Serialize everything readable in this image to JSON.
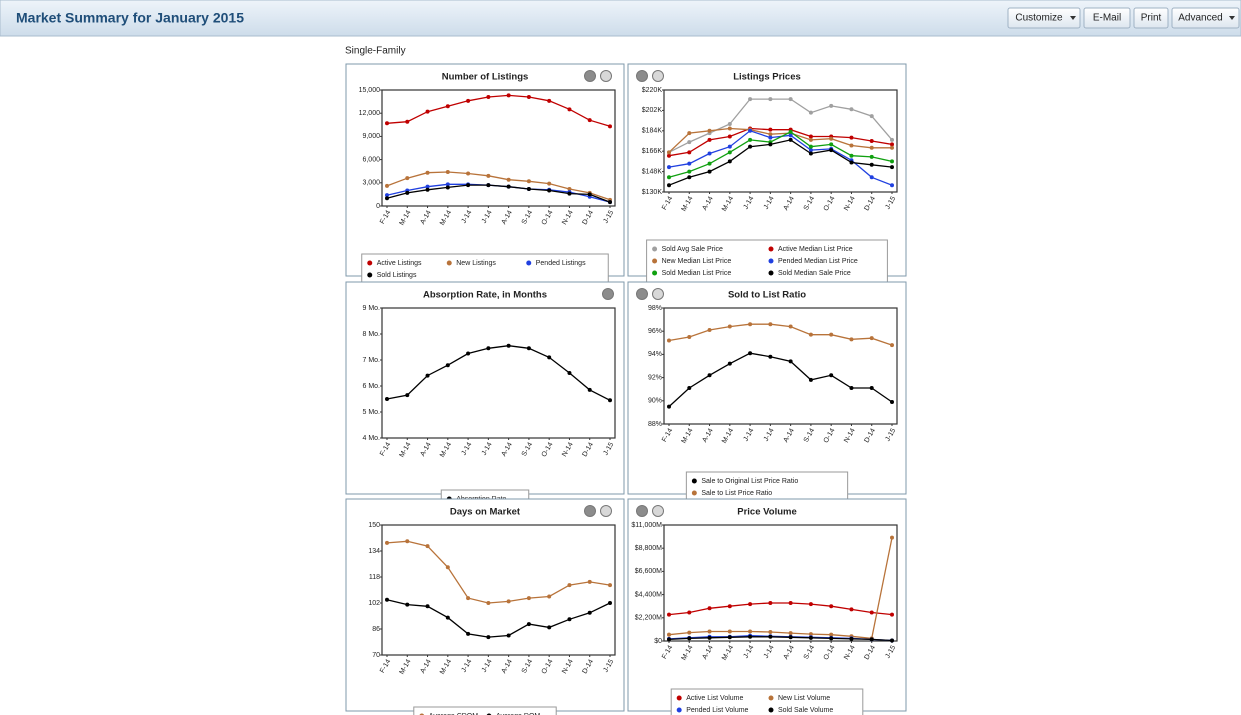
{
  "header": {
    "title": "Market Summary for January 2015",
    "buttons": [
      "Customize",
      "E-Mail",
      "Print",
      "Advanced"
    ]
  },
  "subtitle": "Single-Family",
  "chart_data": [
    {
      "type": "line",
      "title": "Number of Listings",
      "categories": [
        "F-14",
        "M-14",
        "A-14",
        "M-14",
        "J-14",
        "J-14",
        "A-14",
        "S-14",
        "O-14",
        "N-14",
        "D-14",
        "J-15"
      ],
      "ylim": [
        0,
        15000
      ],
      "yticks": [
        0,
        {
          "value": 3000,
          "label": "3,000"
        },
        {
          "value": 6000,
          "label": "6,000"
        },
        {
          "value": 9000,
          "label": "9,000"
        },
        {
          "value": 12000,
          "label": "12,000"
        },
        {
          "value": 15000,
          "label": "15,000"
        }
      ],
      "series": [
        {
          "name": "Active Listings",
          "color": "#c00000",
          "values": [
            10700,
            10900,
            12200,
            12900,
            13600,
            14100,
            14300,
            14100,
            13600,
            12500,
            11100,
            10300
          ]
        },
        {
          "name": "New Listings",
          "color": "#b8733a",
          "values": [
            2600,
            3600,
            4300,
            4400,
            4200,
            3900,
            3400,
            3200,
            2900,
            2200,
            1700,
            800
          ]
        },
        {
          "name": "Pended Listings",
          "color": "#2040e0",
          "values": [
            1400,
            2000,
            2500,
            2800,
            2800,
            2700,
            2500,
            2200,
            2100,
            1800,
            1200,
            500
          ]
        },
        {
          "name": "Sold Listings",
          "color": "#000000",
          "values": [
            1000,
            1700,
            2100,
            2400,
            2700,
            2700,
            2500,
            2200,
            2000,
            1600,
            1500,
            500
          ]
        }
      ]
    },
    {
      "type": "line",
      "title": "Listings Prices",
      "categories": [
        "F-14",
        "M-14",
        "A-14",
        "M-14",
        "J-14",
        "J-14",
        "A-14",
        "S-14",
        "O-14",
        "N-14",
        "D-14",
        "J-15"
      ],
      "ylim": [
        130000,
        220000
      ],
      "yticks": [
        {
          "value": 130000,
          "label": "$130K"
        },
        {
          "value": 148000,
          "label": "$148K"
        },
        {
          "value": 166000,
          "label": "$166K"
        },
        {
          "value": 184000,
          "label": "$184K"
        },
        {
          "value": 202000,
          "label": "$202K"
        },
        {
          "value": 220000,
          "label": "$220K"
        }
      ],
      "series": [
        {
          "name": "Sold Avg Sale Price",
          "color": "#a0a0a0",
          "values": [
            165000,
            174000,
            182000,
            190000,
            212000,
            212000,
            212000,
            200000,
            206000,
            203000,
            197000,
            176000
          ]
        },
        {
          "name": "Active Median List Price",
          "color": "#c00000",
          "values": [
            162000,
            165000,
            176000,
            179000,
            186000,
            185000,
            185000,
            179000,
            179000,
            178000,
            175000,
            172000
          ]
        },
        {
          "name": "New Median List Price",
          "color": "#b8733a",
          "values": [
            165000,
            182000,
            184000,
            186000,
            185000,
            181000,
            182000,
            176000,
            177000,
            171000,
            169000,
            169000
          ]
        },
        {
          "name": "Pended Median List Price",
          "color": "#2040e0",
          "values": [
            152000,
            155000,
            164000,
            170000,
            184000,
            178000,
            180000,
            167000,
            168000,
            158000,
            143000,
            136000
          ]
        },
        {
          "name": "Sold Median List Price",
          "color": "#10a010",
          "values": [
            143000,
            148000,
            155000,
            165000,
            176000,
            174000,
            183000,
            170000,
            172000,
            162000,
            161000,
            157000
          ]
        },
        {
          "name": "Sold Median Sale Price",
          "color": "#000000",
          "values": [
            136000,
            143000,
            148000,
            157000,
            170000,
            172000,
            176000,
            164000,
            167000,
            156000,
            154000,
            152000
          ]
        }
      ]
    },
    {
      "type": "line",
      "title": "Absorption Rate, in Months",
      "categories": [
        "F-14",
        "M-14",
        "A-14",
        "M-14",
        "J-14",
        "J-14",
        "A-14",
        "S-14",
        "O-14",
        "N-14",
        "D-14",
        "J-15"
      ],
      "ylim": [
        4,
        9
      ],
      "yticks": [
        {
          "value": 4,
          "label": "4 Mo."
        },
        {
          "value": 5,
          "label": "5 Mo."
        },
        {
          "value": 6,
          "label": "6 Mo."
        },
        {
          "value": 7,
          "label": "7 Mo."
        },
        {
          "value": 8,
          "label": "8 Mo."
        },
        {
          "value": 9,
          "label": "9 Mo."
        }
      ],
      "series": [
        {
          "name": "Absorption Rate",
          "color": "#000000",
          "values": [
            5.5,
            5.65,
            6.4,
            6.8,
            7.25,
            7.45,
            7.55,
            7.45,
            7.1,
            6.5,
            5.85,
            5.45
          ]
        }
      ]
    },
    {
      "type": "line",
      "title": "Sold to List Ratio",
      "categories": [
        "F-14",
        "M-14",
        "A-14",
        "M-14",
        "J-14",
        "J-14",
        "A-14",
        "S-14",
        "O-14",
        "N-14",
        "D-14",
        "J-15"
      ],
      "ylim": [
        88,
        98
      ],
      "yticks": [
        {
          "value": 88,
          "label": "88%"
        },
        {
          "value": 90,
          "label": "90%"
        },
        {
          "value": 92,
          "label": "92%"
        },
        {
          "value": 94,
          "label": "94%"
        },
        {
          "value": 96,
          "label": "96%"
        },
        {
          "value": 98,
          "label": "98%"
        }
      ],
      "series": [
        {
          "name": "Sale to Original List Price Ratio",
          "color": "#000000",
          "values": [
            89.5,
            91.1,
            92.2,
            93.2,
            94.1,
            93.8,
            93.4,
            91.8,
            92.2,
            91.1,
            91.1,
            89.9
          ]
        },
        {
          "name": "Sale to List Price Ratio",
          "color": "#b8733a",
          "values": [
            95.2,
            95.5,
            96.1,
            96.4,
            96.6,
            96.6,
            96.4,
            95.7,
            95.7,
            95.3,
            95.4,
            94.8
          ]
        }
      ]
    },
    {
      "type": "line",
      "title": "Days on Market",
      "categories": [
        "F-14",
        "M-14",
        "A-14",
        "M-14",
        "J-14",
        "J-14",
        "A-14",
        "S-14",
        "O-14",
        "N-14",
        "D-14",
        "J-15"
      ],
      "ylim": [
        70,
        150
      ],
      "yticks": [
        70,
        86,
        102,
        118,
        134,
        150
      ],
      "series": [
        {
          "name": "Average CDOM",
          "color": "#b8733a",
          "values": [
            139,
            140,
            137,
            124,
            105,
            102,
            103,
            105,
            106,
            113,
            115,
            113
          ]
        },
        {
          "name": "Average DOM",
          "color": "#000000",
          "values": [
            104,
            101,
            100,
            93,
            83,
            81,
            82,
            89,
            87,
            92,
            96,
            102
          ]
        }
      ]
    },
    {
      "type": "line",
      "title": "Price Volume",
      "categories": [
        "F-14",
        "M-14",
        "A-14",
        "M-14",
        "J-14",
        "J-14",
        "A-14",
        "S-14",
        "O-14",
        "N-14",
        "D-14",
        "J-15"
      ],
      "ylim": [
        0,
        11000
      ],
      "yticks": [
        {
          "value": 0,
          "label": "$0"
        },
        {
          "value": 2200,
          "label": "$2,200M"
        },
        {
          "value": 4400,
          "label": "$4,400M"
        },
        {
          "value": 6600,
          "label": "$6,600M"
        },
        {
          "value": 8800,
          "label": "$8,800M"
        },
        {
          "value": 11000,
          "label": "$11,000M"
        }
      ],
      "series": [
        {
          "name": "Active List Volume",
          "color": "#c00000",
          "values": [
            2500,
            2700,
            3100,
            3300,
            3500,
            3600,
            3600,
            3500,
            3300,
            3000,
            2700,
            2500
          ]
        },
        {
          "name": "New List Volume",
          "color": "#b8733a",
          "values": [
            600,
            800,
            900,
            900,
            900,
            850,
            750,
            650,
            600,
            450,
            250,
            9800
          ]
        },
        {
          "name": "Pended List Volume",
          "color": "#2040e0",
          "values": [
            200,
            300,
            400,
            400,
            500,
            450,
            400,
            350,
            300,
            250,
            150,
            50
          ]
        },
        {
          "name": "Sold Sale Volume",
          "color": "#000000",
          "values": [
            150,
            250,
            300,
            350,
            400,
            400,
            350,
            300,
            250,
            200,
            150,
            50
          ]
        }
      ]
    }
  ]
}
